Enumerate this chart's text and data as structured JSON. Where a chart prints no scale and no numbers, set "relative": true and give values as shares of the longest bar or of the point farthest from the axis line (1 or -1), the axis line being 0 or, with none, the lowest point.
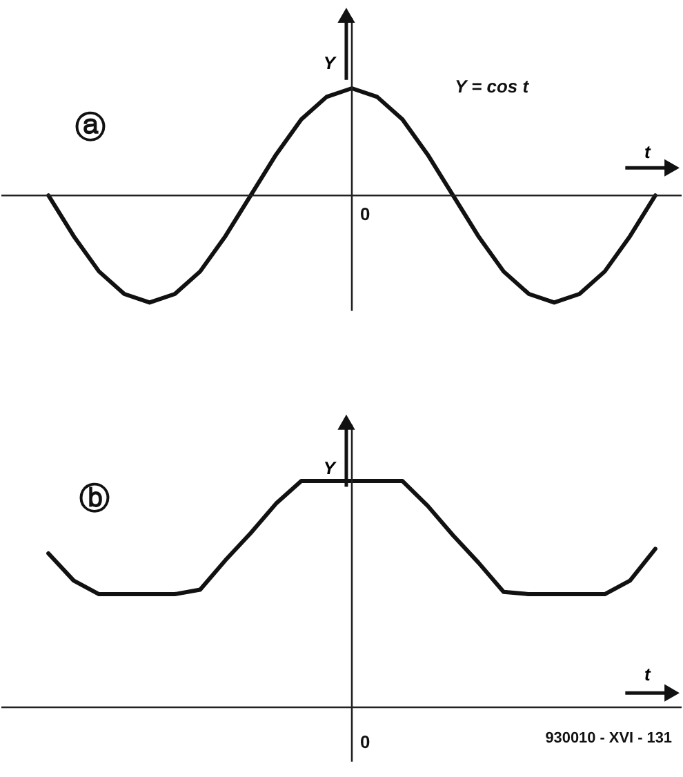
{
  "chart_data": [
    {
      "type": "line",
      "relative": true,
      "xlabel": "t",
      "ylabel": "Y",
      "annotations": [
        "ⓐ",
        "Y = cos t",
        "0"
      ],
      "color": "#111111",
      "line_style": "solid",
      "categories": [
        null,
        null,
        null,
        null,
        null,
        null,
        null,
        null,
        null,
        null,
        null,
        null,
        null,
        null,
        null,
        null,
        null,
        null,
        null,
        null,
        null,
        null,
        null,
        null,
        null
      ],
      "values": [
        0,
        -0.38,
        -0.71,
        -0.92,
        -1,
        -0.92,
        -0.71,
        -0.38,
        0,
        0.38,
        0.71,
        0.92,
        1,
        0.92,
        0.71,
        0.38,
        0,
        -0.38,
        -0.71,
        -0.92,
        -1,
        -0.92,
        -0.71,
        -0.38,
        0
      ]
    },
    {
      "type": "line",
      "relative": true,
      "xlabel": "t",
      "ylabel": "Y",
      "annotations": [
        "ⓑ",
        "930010 - XVI - 131",
        "0"
      ],
      "color": "#111111",
      "line_style": "solid",
      "categories": [
        null,
        null,
        null,
        null,
        null,
        null,
        null,
        null,
        null,
        null,
        null,
        null,
        null,
        null,
        null,
        null,
        null,
        null,
        null,
        null,
        null,
        null,
        null,
        null,
        null
      ],
      "values": [
        0.68,
        0.56,
        0.5,
        0.5,
        0.5,
        0.5,
        0.52,
        0.65,
        0.77,
        0.9,
        1,
        1,
        1,
        1,
        1,
        0.89,
        0.76,
        0.64,
        0.51,
        0.5,
        0.5,
        0.5,
        0.5,
        0.56,
        0.7
      ]
    }
  ]
}
